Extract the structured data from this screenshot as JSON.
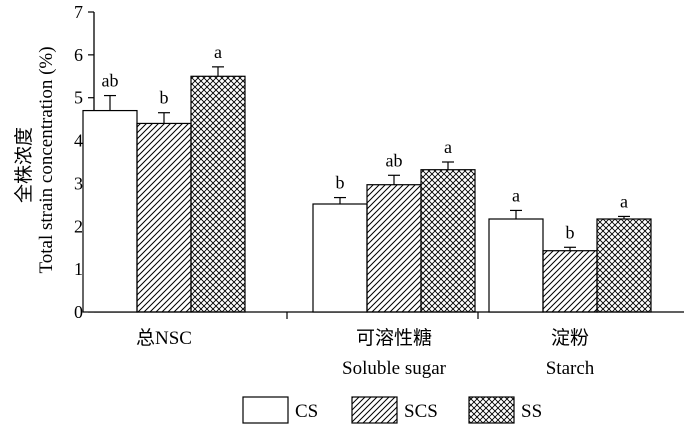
{
  "chart_data": {
    "type": "bar",
    "ylabel_cn": "全株浓度",
    "ylabel_en": "Total strain concentration (%)",
    "ylim": [
      0,
      7
    ],
    "yticks": [
      "0",
      "1",
      "2",
      "3",
      "4",
      "5",
      "6",
      "7"
    ],
    "categories": [
      {
        "cn": "总NSC",
        "en": ""
      },
      {
        "cn": "可溶性糖",
        "en": "Soluble sugar"
      },
      {
        "cn": "淀粉",
        "en": "Starch"
      }
    ],
    "series": [
      {
        "name": "CS",
        "pattern": "none",
        "values": [
          4.7,
          2.52,
          2.17
        ],
        "errors": [
          0.35,
          0.15,
          0.2
        ],
        "letters": [
          "ab",
          "b",
          "a"
        ]
      },
      {
        "name": "SCS",
        "pattern": "diagonal",
        "values": [
          4.4,
          2.97,
          1.43
        ],
        "errors": [
          0.25,
          0.22,
          0.08
        ],
        "letters": [
          "b",
          "ab",
          "b"
        ]
      },
      {
        "name": "SS",
        "pattern": "crosshatch",
        "values": [
          5.5,
          3.32,
          2.17
        ],
        "errors": [
          0.22,
          0.18,
          0.06
        ],
        "letters": [
          "a",
          "a",
          "a"
        ]
      }
    ],
    "legend_position": "bottom",
    "grid": false
  }
}
